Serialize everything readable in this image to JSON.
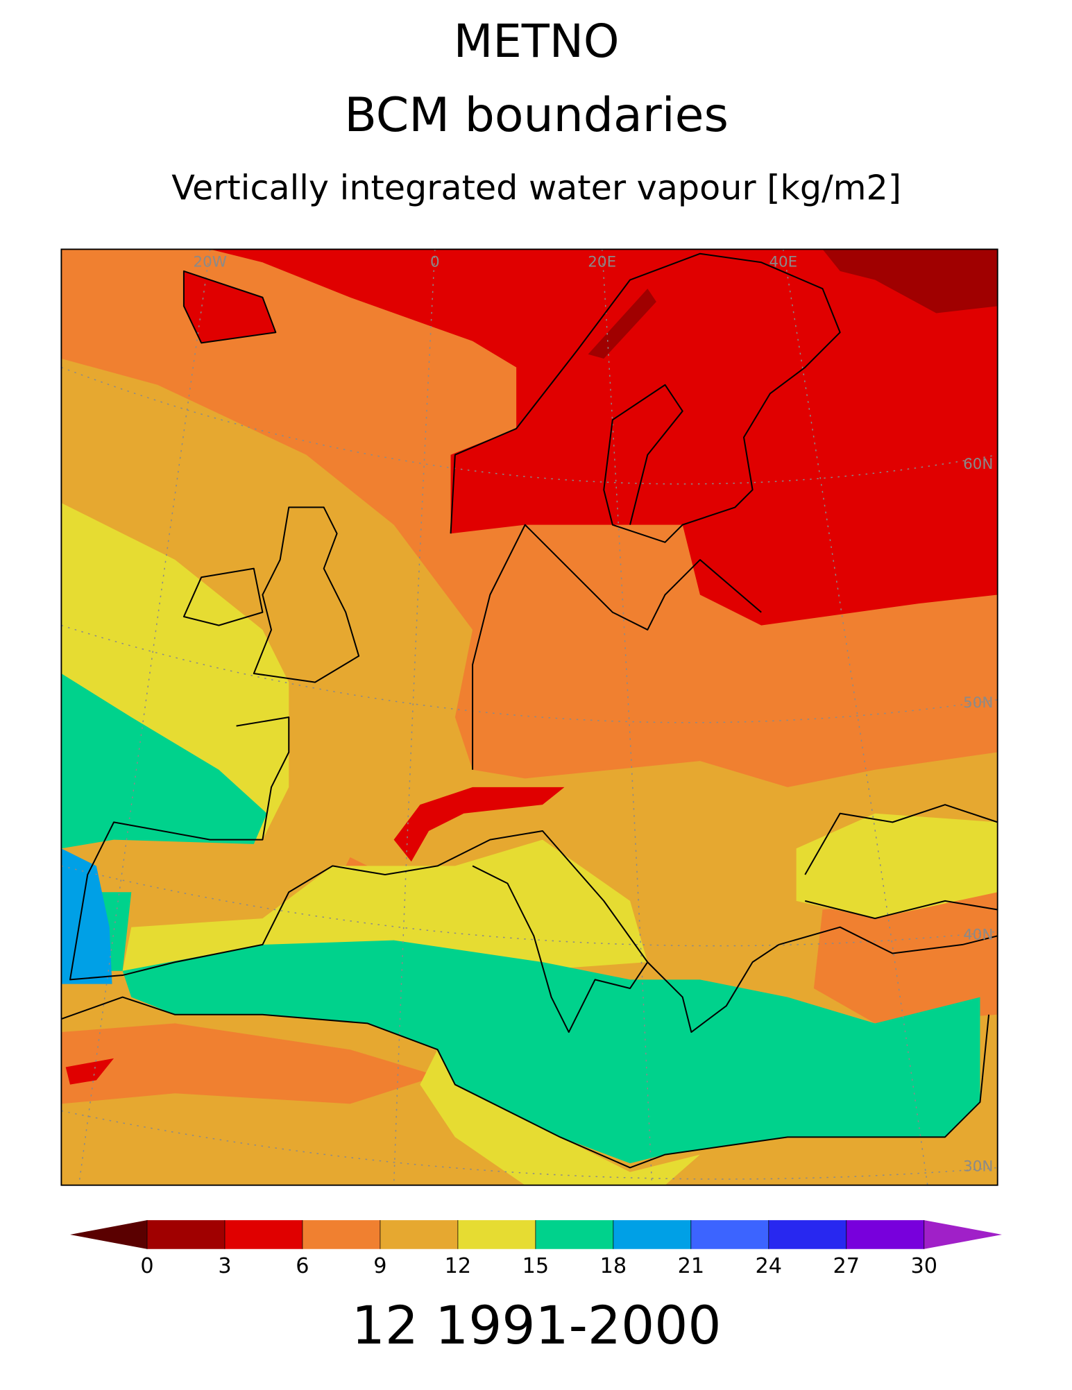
{
  "header": {
    "title": "METNO",
    "subtitle": "BCM boundaries",
    "variable": "Vertically integrated water vapour [kg/m2]"
  },
  "map": {
    "lon_labels": [
      "20W",
      "0",
      "20E",
      "40E"
    ],
    "lat_labels": [
      "60N",
      "50N",
      "40N",
      "30N"
    ]
  },
  "colorbar": {
    "ticks": [
      0,
      3,
      6,
      9,
      12,
      15,
      18,
      21,
      24,
      27,
      30
    ],
    "colors": [
      "#5a0000",
      "#a00000",
      "#e00000",
      "#f08030",
      "#e6a830",
      "#e6dc32",
      "#00d28c",
      "#00a0e6",
      "#3c64ff",
      "#2828f0",
      "#7800dc",
      "#a020c8"
    ]
  },
  "footer": {
    "period": "12 1991-2000"
  }
}
